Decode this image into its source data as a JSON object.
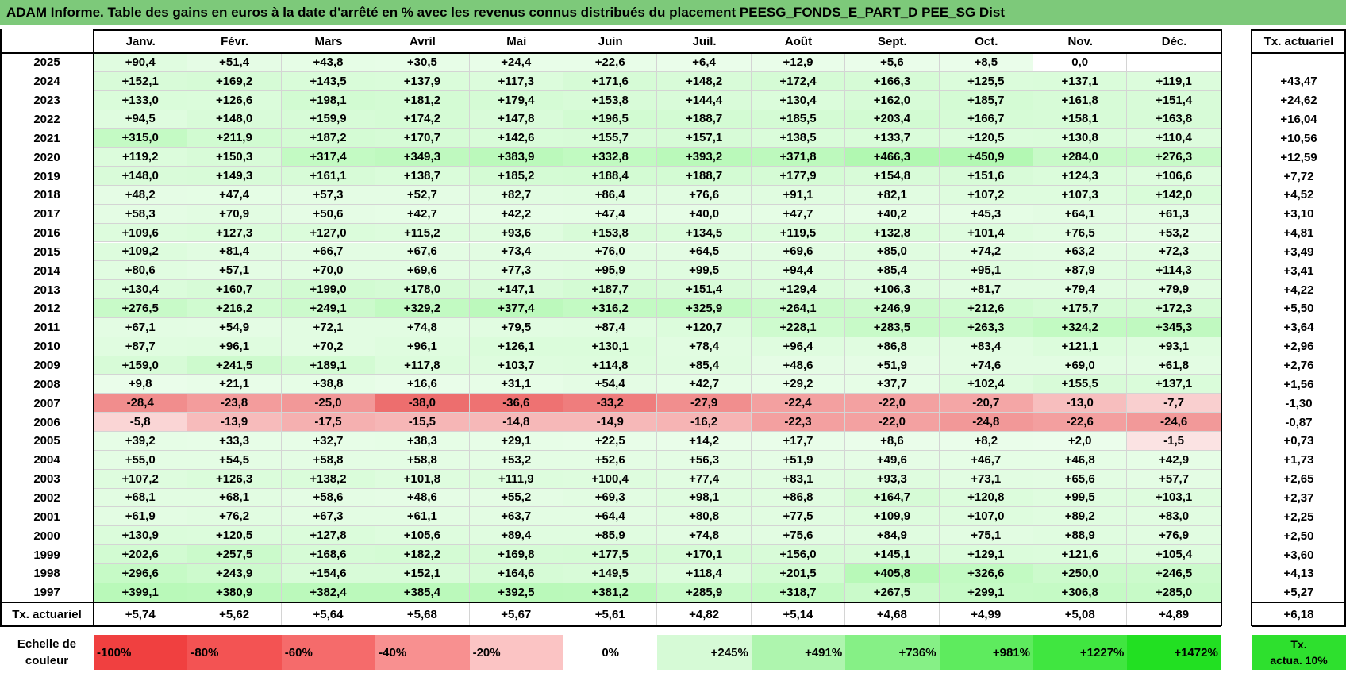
{
  "title": "ADAM Informe. Table des gains en euros à la date d'arrêté en % avec les revenus connus distribués du placement PEESG_FONDS_E_PART_D PEE_SG Dist",
  "months": [
    "Janv.",
    "Févr.",
    "Mars",
    "Avril",
    "Mai",
    "Juin",
    "Juil.",
    "Août",
    "Sept.",
    "Oct.",
    "Nov.",
    "Déc."
  ],
  "tx_header": "Tx. actuariel",
  "rows": [
    {
      "year": "2025",
      "values": [
        "+90,4",
        "+51,4",
        "+43,8",
        "+30,5",
        "+24,4",
        "+22,6",
        "+6,4",
        "+12,9",
        "+5,6",
        "+8,5",
        "0,0",
        ""
      ],
      "tx": ""
    },
    {
      "year": "2024",
      "values": [
        "+152,1",
        "+169,2",
        "+143,5",
        "+137,9",
        "+117,3",
        "+171,6",
        "+148,2",
        "+172,4",
        "+166,3",
        "+125,5",
        "+137,1",
        "+119,1"
      ],
      "tx": "+43,47"
    },
    {
      "year": "2023",
      "values": [
        "+133,0",
        "+126,6",
        "+198,1",
        "+181,2",
        "+179,4",
        "+153,8",
        "+144,4",
        "+130,4",
        "+162,0",
        "+185,7",
        "+161,8",
        "+151,4"
      ],
      "tx": "+24,62"
    },
    {
      "year": "2022",
      "values": [
        "+94,5",
        "+148,0",
        "+159,9",
        "+174,2",
        "+147,8",
        "+196,5",
        "+188,7",
        "+185,5",
        "+203,4",
        "+166,7",
        "+158,1",
        "+163,8"
      ],
      "tx": "+16,04"
    },
    {
      "year": "2021",
      "values": [
        "+315,0",
        "+211,9",
        "+187,2",
        "+170,7",
        "+142,6",
        "+155,7",
        "+157,1",
        "+138,5",
        "+133,7",
        "+120,5",
        "+130,8",
        "+110,4"
      ],
      "tx": "+10,56"
    },
    {
      "year": "2020",
      "values": [
        "+119,2",
        "+150,3",
        "+317,4",
        "+349,3",
        "+383,9",
        "+332,8",
        "+393,2",
        "+371,8",
        "+466,3",
        "+450,9",
        "+284,0",
        "+276,3"
      ],
      "tx": "+12,59"
    },
    {
      "year": "2019",
      "values": [
        "+148,0",
        "+149,3",
        "+161,1",
        "+138,7",
        "+185,2",
        "+188,4",
        "+188,7",
        "+177,9",
        "+154,8",
        "+151,6",
        "+124,3",
        "+106,6"
      ],
      "tx": "+7,72"
    },
    {
      "year": "2018",
      "values": [
        "+48,2",
        "+47,4",
        "+57,3",
        "+52,7",
        "+82,7",
        "+86,4",
        "+76,6",
        "+91,1",
        "+82,1",
        "+107,2",
        "+107,3",
        "+142,0"
      ],
      "tx": "+4,52"
    },
    {
      "year": "2017",
      "values": [
        "+58,3",
        "+70,9",
        "+50,6",
        "+42,7",
        "+42,2",
        "+47,4",
        "+40,0",
        "+47,7",
        "+40,2",
        "+45,3",
        "+64,1",
        "+61,3"
      ],
      "tx": "+3,10"
    },
    {
      "year": "2016",
      "values": [
        "+109,6",
        "+127,3",
        "+127,0",
        "+115,2",
        "+93,6",
        "+153,8",
        "+134,5",
        "+119,5",
        "+132,8",
        "+101,4",
        "+76,5",
        "+53,2"
      ],
      "tx": "+4,81"
    },
    {
      "year": "2015",
      "values": [
        "+109,2",
        "+81,4",
        "+66,7",
        "+67,6",
        "+73,4",
        "+76,0",
        "+64,5",
        "+69,6",
        "+85,0",
        "+74,2",
        "+63,2",
        "+72,3"
      ],
      "tx": "+3,49"
    },
    {
      "year": "2014",
      "values": [
        "+80,6",
        "+57,1",
        "+70,0",
        "+69,6",
        "+77,3",
        "+95,9",
        "+99,5",
        "+94,4",
        "+85,4",
        "+95,1",
        "+87,9",
        "+114,3"
      ],
      "tx": "+3,41"
    },
    {
      "year": "2013",
      "values": [
        "+130,4",
        "+160,7",
        "+199,0",
        "+178,0",
        "+147,1",
        "+187,7",
        "+151,4",
        "+129,4",
        "+106,3",
        "+81,7",
        "+79,4",
        "+79,9"
      ],
      "tx": "+4,22"
    },
    {
      "year": "2012",
      "values": [
        "+276,5",
        "+216,2",
        "+249,1",
        "+329,2",
        "+377,4",
        "+316,2",
        "+325,9",
        "+264,1",
        "+246,9",
        "+212,6",
        "+175,7",
        "+172,3"
      ],
      "tx": "+5,50"
    },
    {
      "year": "2011",
      "values": [
        "+67,1",
        "+54,9",
        "+72,1",
        "+74,8",
        "+79,5",
        "+87,4",
        "+120,7",
        "+228,1",
        "+283,5",
        "+263,3",
        "+324,2",
        "+345,3"
      ],
      "tx": "+3,64"
    },
    {
      "year": "2010",
      "values": [
        "+87,7",
        "+96,1",
        "+70,2",
        "+96,1",
        "+126,1",
        "+130,1",
        "+78,4",
        "+96,4",
        "+86,8",
        "+83,4",
        "+121,1",
        "+93,1"
      ],
      "tx": "+2,96"
    },
    {
      "year": "2009",
      "values": [
        "+159,0",
        "+241,5",
        "+189,1",
        "+117,8",
        "+103,7",
        "+114,8",
        "+85,4",
        "+48,6",
        "+51,9",
        "+74,6",
        "+69,0",
        "+61,8"
      ],
      "tx": "+2,76"
    },
    {
      "year": "2008",
      "values": [
        "+9,8",
        "+21,1",
        "+38,8",
        "+16,6",
        "+31,1",
        "+54,4",
        "+42,7",
        "+29,2",
        "+37,7",
        "+102,4",
        "+155,5",
        "+137,1"
      ],
      "tx": "+1,56"
    },
    {
      "year": "2007",
      "values": [
        "-28,4",
        "-23,8",
        "-25,0",
        "-38,0",
        "-36,6",
        "-33,2",
        "-27,9",
        "-22,4",
        "-22,0",
        "-20,7",
        "-13,0",
        "-7,7"
      ],
      "tx": "-1,30"
    },
    {
      "year": "2006",
      "values": [
        "-5,8",
        "-13,9",
        "-17,5",
        "-15,5",
        "-14,8",
        "-14,9",
        "-16,2",
        "-22,3",
        "-22,0",
        "-24,8",
        "-22,6",
        "-24,6"
      ],
      "tx": "-0,87"
    },
    {
      "year": "2005",
      "values": [
        "+39,2",
        "+33,3",
        "+32,7",
        "+38,3",
        "+29,1",
        "+22,5",
        "+14,2",
        "+17,7",
        "+8,6",
        "+8,2",
        "+2,0",
        "-1,5"
      ],
      "tx": "+0,73"
    },
    {
      "year": "2004",
      "values": [
        "+55,0",
        "+54,5",
        "+58,8",
        "+58,8",
        "+53,2",
        "+52,6",
        "+56,3",
        "+51,9",
        "+49,6",
        "+46,7",
        "+46,8",
        "+42,9"
      ],
      "tx": "+1,73"
    },
    {
      "year": "2003",
      "values": [
        "+107,2",
        "+126,3",
        "+138,2",
        "+101,8",
        "+111,9",
        "+100,4",
        "+77,4",
        "+83,1",
        "+93,3",
        "+73,1",
        "+65,6",
        "+57,7"
      ],
      "tx": "+2,65"
    },
    {
      "year": "2002",
      "values": [
        "+68,1",
        "+68,1",
        "+58,6",
        "+48,6",
        "+55,2",
        "+69,3",
        "+98,1",
        "+86,8",
        "+164,7",
        "+120,8",
        "+99,5",
        "+103,1"
      ],
      "tx": "+2,37"
    },
    {
      "year": "2001",
      "values": [
        "+61,9",
        "+76,2",
        "+67,3",
        "+61,1",
        "+63,7",
        "+64,4",
        "+80,8",
        "+77,5",
        "+109,9",
        "+107,0",
        "+89,2",
        "+83,0"
      ],
      "tx": "+2,25"
    },
    {
      "year": "2000",
      "values": [
        "+130,9",
        "+120,5",
        "+127,8",
        "+105,6",
        "+89,4",
        "+85,9",
        "+74,8",
        "+75,6",
        "+84,9",
        "+75,1",
        "+88,9",
        "+76,9"
      ],
      "tx": "+2,50"
    },
    {
      "year": "1999",
      "values": [
        "+202,6",
        "+257,5",
        "+168,6",
        "+182,2",
        "+169,8",
        "+177,5",
        "+170,1",
        "+156,0",
        "+145,1",
        "+129,1",
        "+121,6",
        "+105,4"
      ],
      "tx": "+3,60"
    },
    {
      "year": "1998",
      "values": [
        "+296,6",
        "+243,9",
        "+154,6",
        "+152,1",
        "+164,6",
        "+149,5",
        "+118,4",
        "+201,5",
        "+405,8",
        "+326,6",
        "+250,0",
        "+246,5"
      ],
      "tx": "+4,13"
    },
    {
      "year": "1997",
      "values": [
        "+399,1",
        "+380,9",
        "+382,4",
        "+385,4",
        "+392,5",
        "+381,2",
        "+285,9",
        "+318,7",
        "+267,5",
        "+299,1",
        "+306,8",
        "+285,0"
      ],
      "tx": "+5,27"
    }
  ],
  "footer": {
    "label": "Tx. actuariel",
    "values": [
      "+5,74",
      "+5,62",
      "+5,64",
      "+5,68",
      "+5,67",
      "+5,61",
      "+4,82",
      "+5,14",
      "+4,68",
      "+4,99",
      "+5,08",
      "+4,89"
    ],
    "tx": "+6,18"
  },
  "scale": {
    "label_line1": "Echelle de",
    "label_line2": "couleur",
    "steps": [
      {
        "label": "-100%",
        "color": "#f04040"
      },
      {
        "label": "-80%",
        "color": "#f35353"
      },
      {
        "label": "-60%",
        "color": "#f56b6b"
      },
      {
        "label": "-40%",
        "color": "#f89090"
      },
      {
        "label": "-20%",
        "color": "#fbc4c4"
      },
      {
        "label": "0%",
        "color": "#ffffff"
      },
      {
        "label": "+245%",
        "color": "#d6fad6"
      },
      {
        "label": "+491%",
        "color": "#aef5ae"
      },
      {
        "label": "+736%",
        "color": "#86f086"
      },
      {
        "label": "+981%",
        "color": "#5eeb5e"
      },
      {
        "label": "+1227%",
        "color": "#40e640"
      },
      {
        "label": "+1472%",
        "color": "#22e022"
      }
    ],
    "tx_label_line1": "Tx.",
    "tx_label_line2": "actua. 10%",
    "tx_color": "#2ee02e"
  },
  "colors": {
    "title_bg": "#7dc97a",
    "pos_max": "#22e022",
    "neg_max": "#f04040"
  }
}
